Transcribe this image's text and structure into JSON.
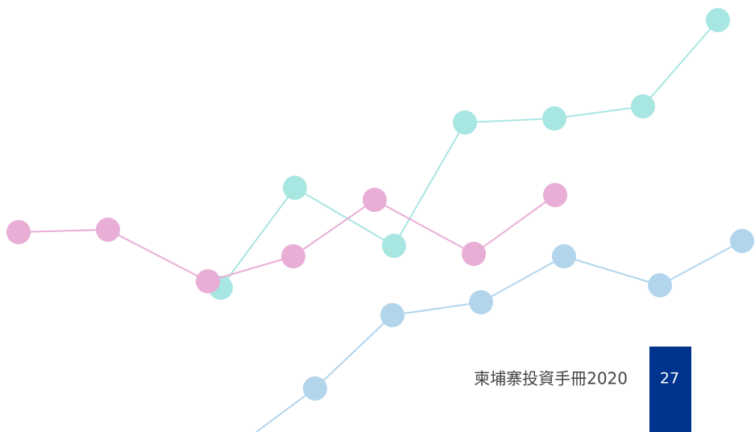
{
  "footer": {
    "title": "柬埔寨投資手冊2020",
    "page_number": "27"
  }
}
